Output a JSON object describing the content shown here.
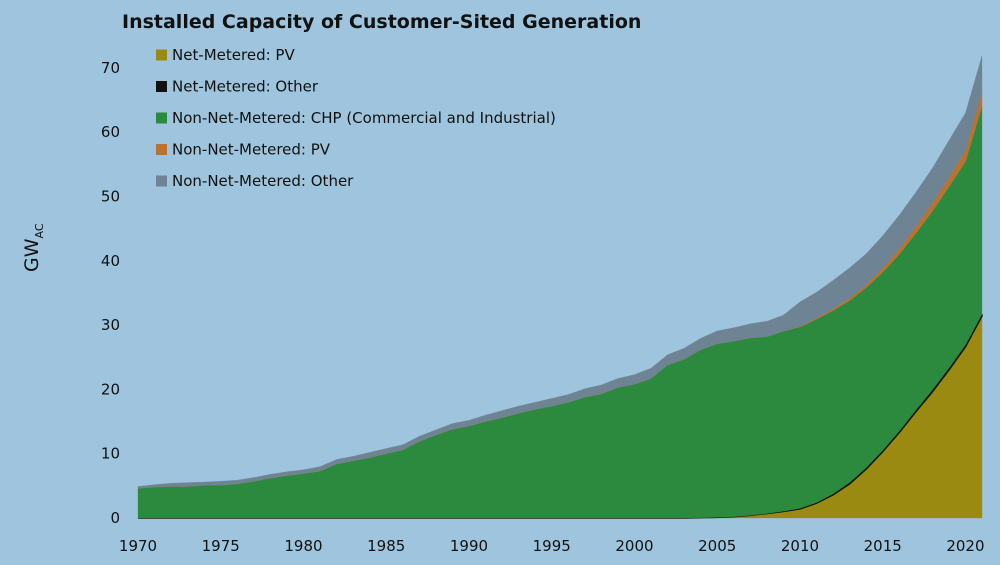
{
  "chart_data": {
    "type": "area",
    "stacked": true,
    "title": "Installed Capacity of Customer-Sited Generation",
    "ylabel": "GW",
    "ylabel_subscript": "AC",
    "xlabel": "",
    "xlim": [
      1970,
      2021
    ],
    "ylim": [
      0,
      72
    ],
    "x_ticks": [
      "1970",
      "1975",
      "1980",
      "1985",
      "1990",
      "1995",
      "2000",
      "2005",
      "2010",
      "2015",
      "2020"
    ],
    "y_ticks": [
      "0",
      "10",
      "20",
      "30",
      "40",
      "50",
      "60",
      "70"
    ],
    "legend_position": "top-left",
    "x": [
      1970,
      1971,
      1972,
      1973,
      1974,
      1975,
      1976,
      1977,
      1978,
      1979,
      1980,
      1981,
      1982,
      1983,
      1984,
      1985,
      1986,
      1987,
      1988,
      1989,
      1990,
      1991,
      1992,
      1993,
      1994,
      1995,
      1996,
      1997,
      1998,
      1999,
      2000,
      2001,
      2002,
      2003,
      2004,
      2005,
      2006,
      2007,
      2008,
      2009,
      2010,
      2011,
      2012,
      2013,
      2014,
      2015,
      2016,
      2017,
      2018,
      2019,
      2020,
      2021
    ],
    "series": [
      {
        "name": "Net-Metered: PV",
        "color": "#9a8a12",
        "values": [
          0,
          0,
          0,
          0,
          0,
          0,
          0,
          0,
          0,
          0,
          0,
          0,
          0,
          0,
          0,
          0,
          0,
          0,
          0,
          0,
          0,
          0,
          0,
          0,
          0,
          0,
          0,
          0,
          0,
          0,
          0,
          0,
          0,
          0,
          0.05,
          0.1,
          0.2,
          0.4,
          0.7,
          1.0,
          1.4,
          2.3,
          3.6,
          5.3,
          7.6,
          10.3,
          13.3,
          16.5,
          19.6,
          23.0,
          26.6,
          31.4
        ]
      },
      {
        "name": "Net-Metered: Other",
        "color": "#111111",
        "values": [
          0,
          0,
          0,
          0,
          0,
          0,
          0,
          0,
          0,
          0,
          0,
          0,
          0,
          0,
          0,
          0,
          0,
          0,
          0,
          0,
          0,
          0,
          0,
          0,
          0,
          0,
          0,
          0,
          0,
          0,
          0,
          0,
          0,
          0,
          0,
          0,
          0,
          0,
          0,
          0.05,
          0.1,
          0.1,
          0.15,
          0.2,
          0.2,
          0.2,
          0.2,
          0.25,
          0.3,
          0.3,
          0.3,
          0.3
        ]
      },
      {
        "name": "Non-Net-Metered: CHP (Commercial and Industrial)",
        "color": "#2b8a3e",
        "values": [
          4.6,
          4.8,
          4.9,
          4.9,
          5.1,
          5.1,
          5.3,
          5.7,
          6.2,
          6.6,
          6.9,
          7.3,
          8.4,
          8.9,
          9.4,
          10.0,
          10.6,
          11.9,
          12.9,
          13.8,
          14.3,
          15.0,
          15.6,
          16.3,
          16.9,
          17.4,
          18.0,
          18.8,
          19.3,
          20.3,
          20.8,
          21.7,
          23.8,
          24.7,
          26.1,
          27.0,
          27.3,
          27.6,
          27.5,
          28.0,
          28.2,
          28.5,
          28.5,
          28.3,
          28.0,
          27.7,
          27.5,
          27.5,
          27.8,
          28.2,
          28.5,
          32.3
        ]
      },
      {
        "name": "Non-Net-Metered: PV",
        "color": "#b87333",
        "values": [
          0,
          0,
          0,
          0,
          0,
          0,
          0,
          0,
          0,
          0,
          0,
          0,
          0,
          0,
          0,
          0,
          0,
          0,
          0,
          0,
          0,
          0,
          0,
          0,
          0,
          0,
          0,
          0,
          0,
          0,
          0,
          0,
          0,
          0,
          0,
          0,
          0,
          0,
          0,
          0,
          0.1,
          0.2,
          0.3,
          0.4,
          0.5,
          0.7,
          0.9,
          1.1,
          1.3,
          1.5,
          1.8,
          2.3
        ]
      },
      {
        "name": "Non-Net-Metered: Other",
        "color": "#6e8494",
        "values": [
          0.3,
          0.4,
          0.5,
          0.6,
          0.5,
          0.6,
          0.6,
          0.6,
          0.6,
          0.6,
          0.6,
          0.7,
          0.7,
          0.7,
          0.8,
          0.8,
          0.8,
          0.8,
          0.8,
          0.9,
          0.9,
          1.0,
          1.1,
          1.1,
          1.1,
          1.2,
          1.2,
          1.3,
          1.4,
          1.4,
          1.5,
          1.6,
          1.6,
          1.7,
          1.8,
          2.0,
          2.1,
          2.2,
          2.4,
          2.5,
          3.8,
          4.0,
          4.4,
          4.7,
          4.8,
          5.0,
          5.2,
          5.3,
          5.4,
          5.7,
          5.8,
          5.6
        ]
      }
    ]
  }
}
